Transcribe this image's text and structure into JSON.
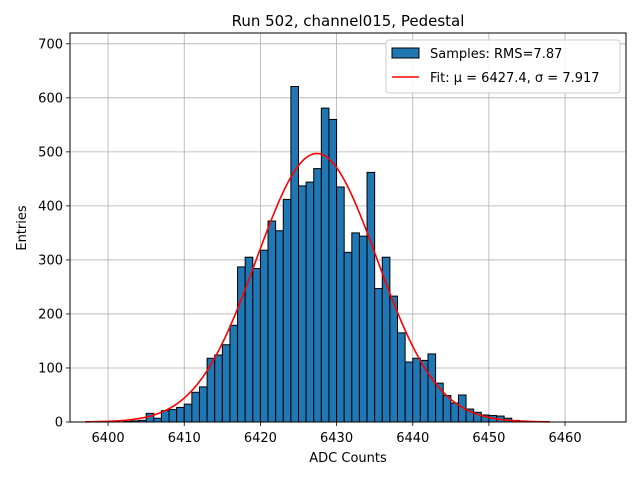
{
  "chart_data": {
    "type": "bar",
    "title": "Run 502, channel015, Pedestal",
    "xlabel": "ADC Counts",
    "ylabel": "Entries",
    "xlim": [
      6395,
      6468
    ],
    "ylim": [
      0,
      720
    ],
    "xticks": [
      6400,
      6410,
      6420,
      6430,
      6440,
      6450,
      6460
    ],
    "yticks": [
      0,
      100,
      200,
      300,
      400,
      500,
      600,
      700
    ],
    "grid": true,
    "legend_position": "top-right",
    "histogram": {
      "name": "Samples: RMS=7.87",
      "color": "#1f77b4",
      "edgecolor": "#000000",
      "bin_edges": [
        6397,
        6398,
        6399,
        6400,
        6401,
        6402,
        6403,
        6404,
        6405,
        6406,
        6407,
        6408,
        6409,
        6410,
        6411,
        6412,
        6413,
        6414,
        6415,
        6416,
        6417,
        6418,
        6419,
        6420,
        6421,
        6422,
        6423,
        6424,
        6425,
        6426,
        6427,
        6428,
        6429,
        6430,
        6431,
        6432,
        6433,
        6434,
        6435,
        6436,
        6437,
        6438,
        6439,
        6440,
        6441,
        6442,
        6443,
        6444,
        6445,
        6446,
        6447,
        6448,
        6449,
        6450,
        6451,
        6452,
        6453,
        6454,
        6455,
        6456,
        6457,
        6458,
        6459,
        6460,
        6461,
        6462,
        6463,
        6464,
        6465
      ],
      "counts": [
        0,
        0,
        0,
        0,
        0,
        1,
        2,
        3,
        16,
        7,
        21,
        23,
        27,
        33,
        55,
        65,
        118,
        124,
        143,
        179,
        287,
        305,
        284,
        318,
        372,
        354,
        412,
        621,
        437,
        444,
        469,
        581,
        560,
        435,
        314,
        350,
        344,
        462,
        247,
        305,
        233,
        165,
        111,
        118,
        114,
        126,
        72,
        49,
        35,
        50,
        24,
        18,
        13,
        12,
        11,
        7,
        3,
        2,
        0,
        0,
        0,
        0,
        0,
        0,
        0,
        0,
        0,
        0
      ]
    },
    "fit": {
      "name": "Fit: μ = 6427.4, σ = 7.917",
      "color": "#ff0000",
      "mu": 6427.4,
      "sigma": 7.917,
      "amplitude": 497,
      "x_range": [
        6397,
        6458
      ]
    }
  }
}
